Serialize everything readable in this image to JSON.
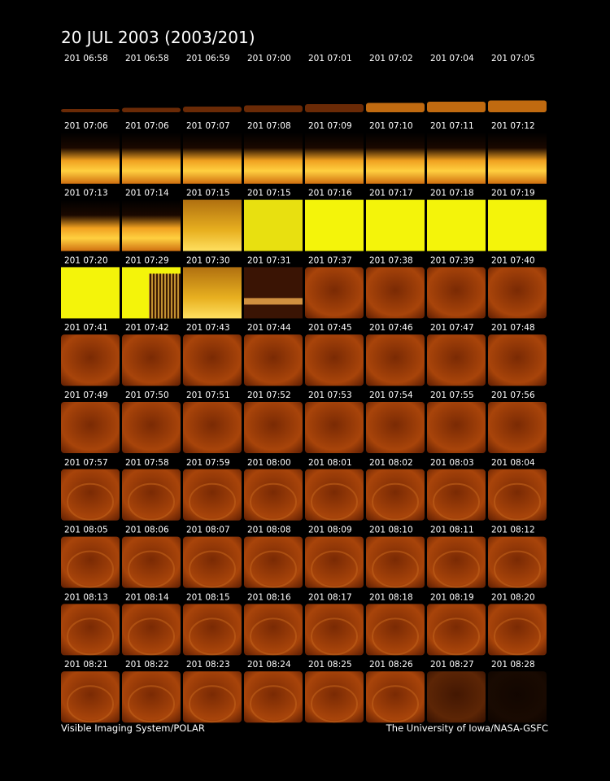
{
  "header": {
    "title": "20 JUL 2003  (2003/201)"
  },
  "panels": [
    "201 06:58",
    "201 06:58",
    "201 06:59",
    "201 07:00",
    "201 07:01",
    "201 07:02",
    "201 07:04",
    "201 07:05",
    "201 07:06",
    "201 07:06",
    "201 07:07",
    "201 07:08",
    "201 07:09",
    "201 07:10",
    "201 07:11",
    "201 07:12",
    "201 07:13",
    "201 07:14",
    "201 07:15",
    "201 07:15",
    "201 07:16",
    "201 07:17",
    "201 07:18",
    "201 07:19",
    "201 07:20",
    "201 07:29",
    "201 07:30",
    "201 07:31",
    "201 07:37",
    "201 07:38",
    "201 07:39",
    "201 07:40",
    "201 07:41",
    "201 07:42",
    "201 07:43",
    "201 07:44",
    "201 07:45",
    "201 07:46",
    "201 07:47",
    "201 07:48",
    "201 07:49",
    "201 07:50",
    "201 07:51",
    "201 07:52",
    "201 07:53",
    "201 07:54",
    "201 07:55",
    "201 07:56",
    "201 07:57",
    "201 07:58",
    "201 07:59",
    "201 08:00",
    "201 08:01",
    "201 08:02",
    "201 08:03",
    "201 08:04",
    "201 08:05",
    "201 08:06",
    "201 08:07",
    "201 08:08",
    "201 08:09",
    "201 08:10",
    "201 08:11",
    "201 08:12",
    "201 08:13",
    "201 08:14",
    "201 08:15",
    "201 08:16",
    "201 08:17",
    "201 08:18",
    "201 08:19",
    "201 08:20",
    "201 08:21",
    "201 08:22",
    "201 08:23",
    "201 08:24",
    "201 08:25",
    "201 08:26",
    "201 08:27",
    "201 08:28"
  ],
  "footer": {
    "left": "Visible Imaging System/POLAR",
    "right": "The University of Iowa/NASA-GSFC"
  }
}
